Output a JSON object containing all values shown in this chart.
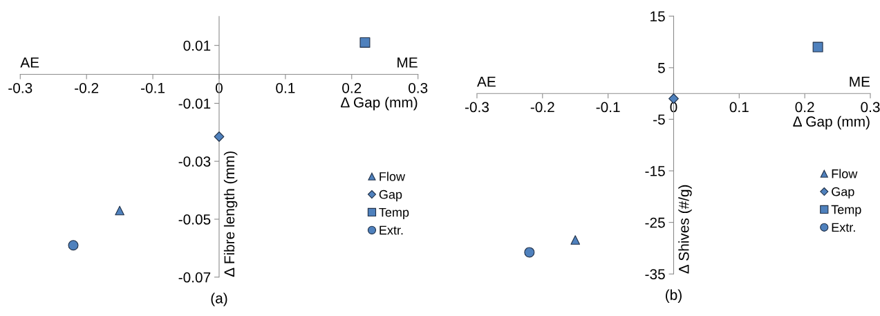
{
  "chart_data": [
    {
      "type": "scatter",
      "xlabel": "Δ Gap (mm)",
      "ylabel": "Δ Fibre length (mm)",
      "xlim": [
        -0.3,
        0.3
      ],
      "xticks": [
        -0.3,
        -0.2,
        -0.1,
        0,
        0.1,
        0.2,
        0.3
      ],
      "ylim": [
        -0.07,
        0.02
      ],
      "yticks": [
        -0.07,
        -0.05,
        -0.03,
        -0.01,
        0.01
      ],
      "legend": "bottom right",
      "grid": false,
      "annotations": [
        "AE",
        "ME",
        "(a)"
      ],
      "series": [
        {
          "name": "Flow",
          "marker": "triangle",
          "color": "#4f81bd",
          "x": [
            -0.15
          ],
          "values": [
            -0.047
          ]
        },
        {
          "name": "Gap",
          "marker": "diamond",
          "color": "#4f81bd",
          "x": [
            0
          ],
          "values": [
            -0.0215
          ]
        },
        {
          "name": "Temp",
          "marker": "square",
          "color": "#4f81bd",
          "x": [
            0.22
          ],
          "values": [
            0.011
          ]
        },
        {
          "name": "Extr.",
          "marker": "circle",
          "color": "#4f81bd",
          "x": [
            -0.22
          ],
          "values": [
            -0.059
          ]
        }
      ]
    },
    {
      "type": "scatter",
      "xlabel": "Δ Gap (mm)",
      "ylabel": "Δ Shives (#/g)",
      "xlim": [
        -0.3,
        0.3
      ],
      "xticks": [
        -0.3,
        -0.2,
        -0.1,
        0,
        0.1,
        0.2,
        0.3
      ],
      "ylim": [
        -35,
        15
      ],
      "yticks": [
        -35,
        -25,
        -15,
        -5,
        5,
        15
      ],
      "legend": "bottom right",
      "grid": false,
      "annotations": [
        "AE",
        "ME",
        "(b)"
      ],
      "series": [
        {
          "name": "Flow",
          "marker": "triangle",
          "color": "#4f81bd",
          "x": [
            -0.15
          ],
          "values": [
            -28.4
          ]
        },
        {
          "name": "Gap",
          "marker": "diamond",
          "color": "#4f81bd",
          "x": [
            0
          ],
          "values": [
            -1.0
          ]
        },
        {
          "name": "Temp",
          "marker": "square",
          "color": "#4f81bd",
          "x": [
            0.22
          ],
          "values": [
            9.0
          ]
        },
        {
          "name": "Extr.",
          "marker": "circle",
          "color": "#4f81bd",
          "x": [
            -0.22
          ],
          "values": [
            -30.8
          ]
        }
      ]
    }
  ]
}
